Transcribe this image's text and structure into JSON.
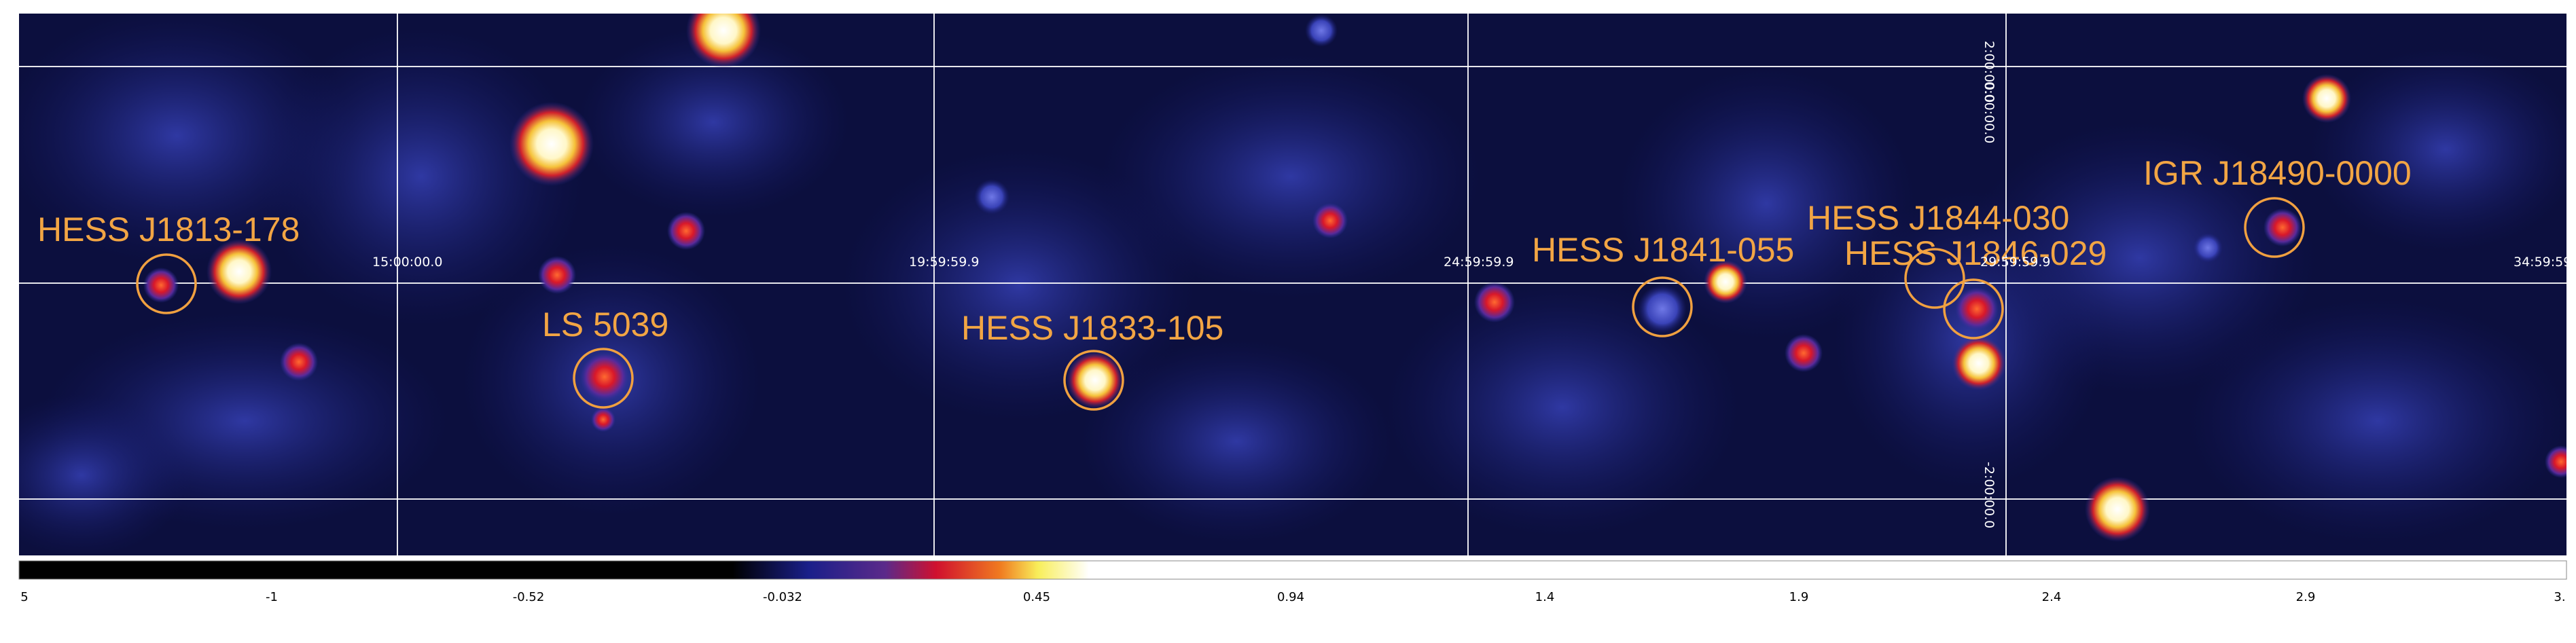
{
  "sources": [
    {
      "label": "HESS J1813-178"
    },
    {
      "label": "LS 5039"
    },
    {
      "label": "HESS J1833-105"
    },
    {
      "label": "HESS J1841-055"
    },
    {
      "label": "HESS J1844-030"
    },
    {
      "label": "HESS J1846-029"
    },
    {
      "label": "IGR J18490-0000"
    }
  ],
  "coordinate_labels": {
    "longitude": [
      "15:00:00.0",
      "19:59:59.9",
      "24:59:59.9",
      "29:59:59.9",
      "34:59:59"
    ],
    "latitude": [
      "2:00:00.0",
      "0:00:00.0",
      "-2:00:00.0"
    ]
  },
  "colorbar": {
    "ticks": [
      "5",
      "-1",
      "-0.52",
      "-0.032",
      "0.45",
      "0.94",
      "1.4",
      "1.9",
      "2.4",
      "2.9",
      "3."
    ],
    "colors": [
      "#000000",
      "#1a1f7a",
      "#c8102e",
      "#f5e44b",
      "#ffffff"
    ]
  },
  "colors": {
    "label": "#f2a544",
    "ring": "#f0a040",
    "grid": "#ffffff"
  }
}
